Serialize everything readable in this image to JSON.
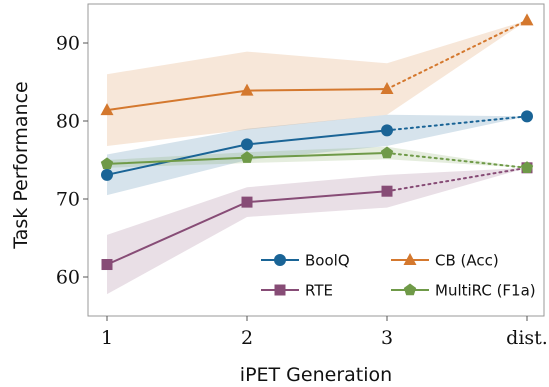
{
  "chart_data": {
    "type": "line",
    "title": "",
    "xlabel": "iPET Generation",
    "ylabel": "Task Performance",
    "categories": [
      "1",
      "2",
      "3",
      "dist."
    ],
    "ylim": [
      55,
      95
    ],
    "yticks": [
      60,
      70,
      80,
      90
    ],
    "grid": false,
    "legend_position": "bottom-right",
    "legend_columns": 2,
    "series": [
      {
        "name": "BoolQ",
        "color": "#1a6496",
        "marker": "circle",
        "values": [
          73.1,
          77.0,
          78.8,
          80.6
        ],
        "lower": [
          70.5,
          75.0,
          76.8,
          80.6
        ],
        "upper": [
          75.7,
          79.0,
          80.8,
          80.6
        ]
      },
      {
        "name": "CB (Acc)",
        "color": "#d4782e",
        "marker": "triangle",
        "values": [
          81.4,
          83.9,
          84.1,
          92.9
        ],
        "lower": [
          76.8,
          78.9,
          80.8,
          92.9
        ],
        "upper": [
          86.0,
          88.9,
          87.4,
          92.9
        ]
      },
      {
        "name": "RTE",
        "color": "#874c76",
        "marker": "square",
        "values": [
          61.6,
          69.6,
          71.0,
          74.0
        ],
        "lower": [
          57.8,
          67.7,
          68.9,
          74.0
        ],
        "upper": [
          65.4,
          71.5,
          73.1,
          74.0
        ]
      },
      {
        "name": "MultiRC (F1a)",
        "color": "#6f9a48",
        "marker": "pentagon",
        "values": [
          74.5,
          75.3,
          75.9,
          74.0
        ],
        "lower": [
          74.0,
          74.6,
          75.1,
          74.0
        ],
        "upper": [
          75.0,
          76.0,
          76.7,
          74.0
        ]
      }
    ],
    "line_style": "solid through generation 3, dotted to dist.",
    "band": "shaded range around each series"
  }
}
